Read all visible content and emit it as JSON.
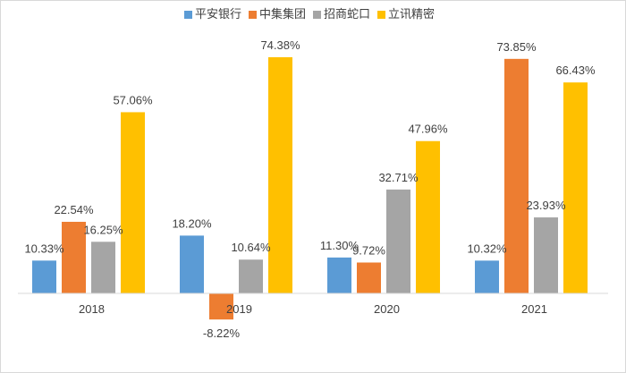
{
  "chart_data": {
    "type": "bar",
    "title": "",
    "xlabel": "",
    "ylabel": "",
    "categories": [
      "2018",
      "2019",
      "2020",
      "2021"
    ],
    "ylim": [
      -10,
      80
    ],
    "grid": false,
    "legend_position": "top",
    "series": [
      {
        "name": "平安银行",
        "color": "#5b9bd5",
        "values": [
          10.33,
          18.2,
          11.3,
          10.32
        ],
        "labels": [
          "10.33%",
          "18.20%",
          "11.30%",
          "10.32%"
        ]
      },
      {
        "name": "中集集团",
        "color": "#ed7d31",
        "values": [
          22.54,
          -8.22,
          9.72,
          73.85
        ],
        "labels": [
          "22.54%",
          "-8.22%",
          "9.72%",
          "73.85%"
        ]
      },
      {
        "name": "招商蛇口",
        "color": "#a5a5a5",
        "values": [
          16.25,
          10.64,
          32.71,
          23.93
        ],
        "labels": [
          "16.25%",
          "10.64%",
          "32.71%",
          "23.93%"
        ]
      },
      {
        "name": "立讯精密",
        "color": "#ffc000",
        "values": [
          57.06,
          74.38,
          47.96,
          66.43
        ],
        "labels": [
          "57.06%",
          "74.38%",
          "47.96%",
          "66.43%"
        ]
      }
    ]
  }
}
